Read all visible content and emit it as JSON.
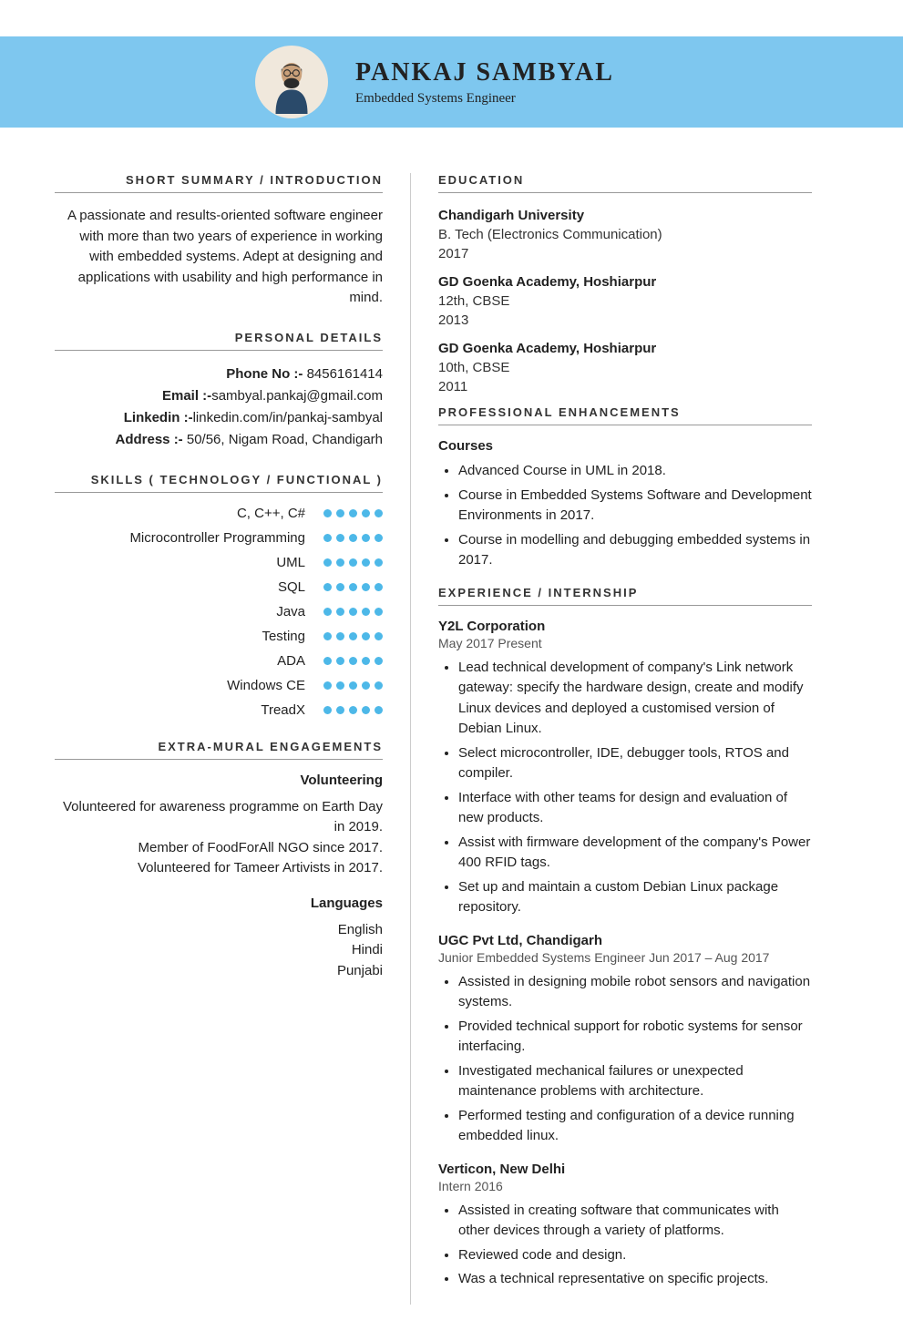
{
  "header": {
    "name": "PANKAJ SAMBYAL",
    "role": "Embedded Systems Engineer"
  },
  "colors": {
    "banner": "#7ec7ef",
    "dot_filled": "#4db8e8",
    "dot_empty": "#d0d0d0",
    "text": "#222222",
    "divider": "#cccccc"
  },
  "left": {
    "summary_title": "SHORT SUMMARY / INTRODUCTION",
    "summary": "A passionate and results-oriented software engineer with more than two years of experience in working with embedded systems. Adept at designing and applications with usability and high performance in mind.",
    "details_title": "PERSONAL DETAILS",
    "details": {
      "phone_label": "Phone No :- ",
      "phone": "8456161414",
      "email_label": "Email :-",
      "email": "sambyal.pankaj@gmail.com",
      "linkedin_label": "Linkedin :-",
      "linkedin": "linkedin.com/in/pankaj-sambyal",
      "address_label": "Address :- ",
      "address": "50/56, Nigam Road, Chandigarh"
    },
    "skills_title": "SKILLS ( TECHNOLOGY / FUNCTIONAL )",
    "skills": [
      {
        "name": "C, C++, C#",
        "rating": 5
      },
      {
        "name": "Microcontroller Programming",
        "rating": 5
      },
      {
        "name": "UML",
        "rating": 5
      },
      {
        "name": "SQL",
        "rating": 5
      },
      {
        "name": "Java",
        "rating": 5
      },
      {
        "name": "Testing",
        "rating": 5
      },
      {
        "name": "ADA",
        "rating": 5
      },
      {
        "name": "Windows CE",
        "rating": 5
      },
      {
        "name": "TreadX",
        "rating": 5
      }
    ],
    "dot_count": 5,
    "extra_title": "EXTRA-MURAL ENGAGEMENTS",
    "vol_head": "Volunteering",
    "volunteering": [
      "Volunteered for awareness programme on Earth Day in 2019.",
      "Member of FoodForAll NGO since 2017.",
      "Volunteered for Tameer Artivists in 2017."
    ],
    "lang_head": "Languages",
    "languages": [
      "English",
      "Hindi",
      "Punjabi"
    ]
  },
  "right": {
    "edu_title": "EDUCATION",
    "education": [
      {
        "school": "Chandigarh University",
        "degree": "B. Tech (Electronics Communication)",
        "year": "2017"
      },
      {
        "school": "GD Goenka Academy, Hoshiarpur",
        "degree": "12th, CBSE",
        "year": "2013"
      },
      {
        "school": "GD Goenka Academy, Hoshiarpur",
        "degree": "10th, CBSE",
        "year": "2011"
      }
    ],
    "prof_title": "PROFESSIONAL ENHANCEMENTS",
    "courses_head": "Courses",
    "courses": [
      "Advanced Course in UML in 2018.",
      "Course in Embedded Systems Software and Development Environments in 2017.",
      "Course in modelling and debugging embedded systems in 2017."
    ],
    "exp_title": "EXPERIENCE / INTERNSHIP",
    "experience": [
      {
        "company": "Y2L Corporation",
        "period": "May 2017 Present",
        "bullets": [
          "Lead technical development of company's Link network gateway: specify the hardware design, create and modify Linux devices and deployed a customised version of Debian Linux.",
          "Select microcontroller, IDE, debugger tools, RTOS and compiler.",
          "Interface with other teams for design and evaluation of new products.",
          "Assist with firmware development of the company's Power 400 RFID tags.",
          "Set up and maintain a custom Debian Linux package repository."
        ]
      },
      {
        "company": "UGC Pvt Ltd, Chandigarh",
        "period": "Junior Embedded Systems Engineer Jun 2017 – Aug 2017",
        "bullets": [
          "Assisted in designing mobile robot sensors and navigation systems.",
          "Provided technical support for robotic systems for sensor interfacing.",
          "Investigated mechanical failures or unexpected maintenance problems with architecture.",
          "Performed testing and configuration of a device running embedded linux."
        ]
      },
      {
        "company": "Verticon, New Delhi",
        "period": "Intern 2016",
        "bullets": [
          "Assisted in creating software that communicates with other devices through a variety of platforms.",
          "Reviewed code and design.",
          "Was a technical representative on specific projects."
        ]
      }
    ]
  }
}
